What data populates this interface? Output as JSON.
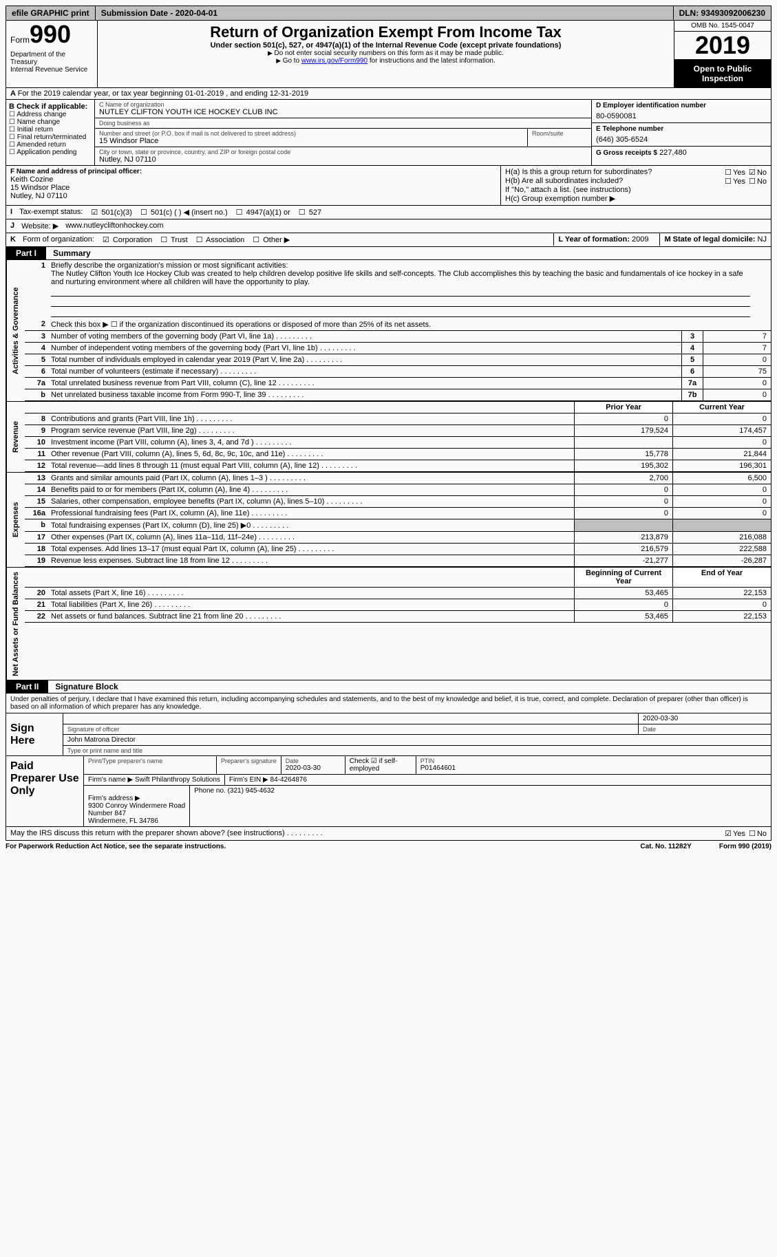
{
  "topbar": {
    "efile": "efile GRAPHIC print",
    "submission": "Submission Date - 2020-04-01",
    "dln": "DLN: 93493092006230"
  },
  "header": {
    "formword": "Form",
    "formnum": "990",
    "dept": "Department of the Treasury\nInternal Revenue Service",
    "title": "Return of Organization Exempt From Income Tax",
    "subtitle": "Under section 501(c), 527, or 4947(a)(1) of the Internal Revenue Code (except private foundations)",
    "note1": "Do not enter social security numbers on this form as it may be made public.",
    "note2_pre": "Go to ",
    "note2_link": "www.irs.gov/Form990",
    "note2_post": " for instructions and the latest information.",
    "omb": "OMB No. 1545-0047",
    "year": "2019",
    "inspection": "Open to Public Inspection"
  },
  "row_a": "For the 2019 calendar year, or tax year beginning 01-01-2019   , and ending 12-31-2019",
  "section_b": {
    "head": "B Check if applicable:",
    "items": [
      "Address change",
      "Name change",
      "Initial return",
      "Final return/terminated",
      "Amended return",
      "Application pending"
    ]
  },
  "section_c": {
    "name_lbl": "C Name of organization",
    "name": "NUTLEY CLIFTON YOUTH ICE HOCKEY CLUB INC",
    "dba_lbl": "Doing business as",
    "dba": "",
    "street_lbl": "Number and street (or P.O. box if mail is not delivered to street address)",
    "street": "15 Windsor Place",
    "room_lbl": "Room/suite",
    "city_lbl": "City or town, state or province, country, and ZIP or foreign postal code",
    "city": "Nutley, NJ  07110"
  },
  "section_d": {
    "ein_lbl": "D Employer identification number",
    "ein": "80-0590081",
    "tel_lbl": "E Telephone number",
    "tel": "(646) 305-6524",
    "gross_lbl": "G Gross receipts $",
    "gross": "227,480"
  },
  "section_f": {
    "lbl": "F Name and address of principal officer:",
    "name": "Keith Cozine",
    "addr1": "15 Windsor Place",
    "addr2": "Nutley, NJ  07110"
  },
  "section_h": {
    "ha": "H(a)  Is this a group return for subordinates?",
    "hb": "H(b)  Are all subordinates included?",
    "hb_note": "If \"No,\" attach a list. (see instructions)",
    "hc": "H(c)  Group exemption number ▶",
    "yes": "Yes",
    "no": "No"
  },
  "row_i": {
    "lbl": "I",
    "text": "Tax-exempt status:",
    "opts": [
      "501(c)(3)",
      "501(c) (  ) ◀ (insert no.)",
      "4947(a)(1) or",
      "527"
    ]
  },
  "row_j": {
    "lbl": "J",
    "text": "Website: ▶",
    "val": "www.nutleycliftonhockey.com"
  },
  "row_k": {
    "lbl": "K",
    "text": "Form of organization:",
    "opts": [
      "Corporation",
      "Trust",
      "Association",
      "Other ▶"
    ],
    "l_lbl": "L Year of formation:",
    "l_val": "2009",
    "m_lbl": "M State of legal domicile:",
    "m_val": "NJ"
  },
  "part1": {
    "tab": "Part I",
    "title": "Summary"
  },
  "sections": {
    "gov": "Activities & Governance",
    "rev": "Revenue",
    "exp": "Expenses",
    "net": "Net Assets or Fund Balances"
  },
  "mission_lbl": "Briefly describe the organization's mission or most significant activities:",
  "mission": "The Nutley Clifton Youth Ice Hockey Club was created to help children develop positive life skills and self-concepts. The Club accomplishes this by teaching the basic and fundamentals of ice hockey in a safe and nurturing environment where all children will have the opportunity to play.",
  "lines_gov": [
    {
      "n": "2",
      "t": "Check this box ▶ ☐  if the organization discontinued its operations or disposed of more than 25% of its net assets."
    },
    {
      "n": "3",
      "t": "Number of voting members of the governing body (Part VI, line 1a)",
      "box": "3",
      "v": "7"
    },
    {
      "n": "4",
      "t": "Number of independent voting members of the governing body (Part VI, line 1b)",
      "box": "4",
      "v": "7"
    },
    {
      "n": "5",
      "t": "Total number of individuals employed in calendar year 2019 (Part V, line 2a)",
      "box": "5",
      "v": "0"
    },
    {
      "n": "6",
      "t": "Total number of volunteers (estimate if necessary)",
      "box": "6",
      "v": "75"
    },
    {
      "n": "7a",
      "t": "Total unrelated business revenue from Part VIII, column (C), line 12",
      "box": "7a",
      "v": "0"
    },
    {
      "n": "b",
      "t": "Net unrelated business taxable income from Form 990-T, line 39",
      "box": "7b",
      "v": "0"
    }
  ],
  "col_prior": "Prior Year",
  "col_curr": "Current Year",
  "col_beg": "Beginning of Current Year",
  "col_end": "End of Year",
  "lines_rev": [
    {
      "n": "8",
      "t": "Contributions and grants (Part VIII, line 1h)",
      "p": "0",
      "c": "0"
    },
    {
      "n": "9",
      "t": "Program service revenue (Part VIII, line 2g)",
      "p": "179,524",
      "c": "174,457"
    },
    {
      "n": "10",
      "t": "Investment income (Part VIII, column (A), lines 3, 4, and 7d )",
      "p": "",
      "c": "0"
    },
    {
      "n": "11",
      "t": "Other revenue (Part VIII, column (A), lines 5, 6d, 8c, 9c, 10c, and 11e)",
      "p": "15,778",
      "c": "21,844"
    },
    {
      "n": "12",
      "t": "Total revenue—add lines 8 through 11 (must equal Part VIII, column (A), line 12)",
      "p": "195,302",
      "c": "196,301"
    }
  ],
  "lines_exp": [
    {
      "n": "13",
      "t": "Grants and similar amounts paid (Part IX, column (A), lines 1–3 )",
      "p": "2,700",
      "c": "6,500"
    },
    {
      "n": "14",
      "t": "Benefits paid to or for members (Part IX, column (A), line 4)",
      "p": "0",
      "c": "0"
    },
    {
      "n": "15",
      "t": "Salaries, other compensation, employee benefits (Part IX, column (A), lines 5–10)",
      "p": "0",
      "c": "0"
    },
    {
      "n": "16a",
      "t": "Professional fundraising fees (Part IX, column (A), line 11e)",
      "p": "0",
      "c": "0"
    },
    {
      "n": "b",
      "t": "Total fundraising expenses (Part IX, column (D), line 25) ▶0",
      "p": "shade",
      "c": "shade"
    },
    {
      "n": "17",
      "t": "Other expenses (Part IX, column (A), lines 11a–11d, 11f–24e)",
      "p": "213,879",
      "c": "216,088"
    },
    {
      "n": "18",
      "t": "Total expenses. Add lines 13–17 (must equal Part IX, column (A), line 25)",
      "p": "216,579",
      "c": "222,588"
    },
    {
      "n": "19",
      "t": "Revenue less expenses. Subtract line 18 from line 12",
      "p": "-21,277",
      "c": "-26,287"
    }
  ],
  "lines_net": [
    {
      "n": "20",
      "t": "Total assets (Part X, line 16)",
      "p": "53,465",
      "c": "22,153"
    },
    {
      "n": "21",
      "t": "Total liabilities (Part X, line 26)",
      "p": "0",
      "c": "0"
    },
    {
      "n": "22",
      "t": "Net assets or fund balances. Subtract line 21 from line 20",
      "p": "53,465",
      "c": "22,153"
    }
  ],
  "part2": {
    "tab": "Part II",
    "title": "Signature Block"
  },
  "sig": {
    "perjury": "Under penalties of perjury, I declare that I have examined this return, including accompanying schedules and statements, and to the best of my knowledge and belief, it is true, correct, and complete. Declaration of preparer (other than officer) is based on all information of which preparer has any knowledge.",
    "sign_here": "Sign Here",
    "sig_officer_lbl": "Signature of officer",
    "date_lbl": "Date",
    "sig_date": "2020-03-30",
    "name": "John Matrona  Director",
    "name_lbl": "Type or print name and title"
  },
  "prep": {
    "title": "Paid Preparer Use Only",
    "h_name": "Print/Type preparer's name",
    "h_sig": "Preparer's signature",
    "h_date": "Date",
    "date": "2020-03-30",
    "check_lbl": "Check ☑ if self-employed",
    "ptin_lbl": "PTIN",
    "ptin": "P01464601",
    "firm_name_lbl": "Firm's name    ▶",
    "firm_name": "Swift Philanthropy Solutions",
    "firm_ein_lbl": "Firm's EIN ▶",
    "firm_ein": "84-4264876",
    "firm_addr_lbl": "Firm's address ▶",
    "firm_addr": "9300 Conroy Windermere Road\nNumber 847\nWindermere, FL  34786",
    "phone_lbl": "Phone no.",
    "phone": "(321) 945-4632"
  },
  "footer": {
    "discuss": "May the IRS discuss this return with the preparer shown above? (see instructions)",
    "yes": "Yes",
    "no": "No",
    "paperwork": "For Paperwork Reduction Act Notice, see the separate instructions.",
    "cat": "Cat. No. 11282Y",
    "form": "Form 990 (2019)"
  }
}
